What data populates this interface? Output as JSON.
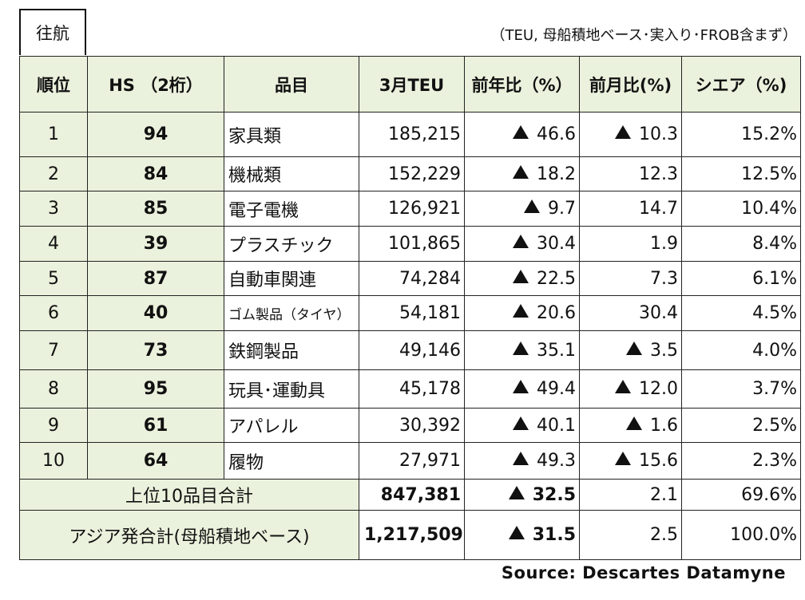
{
  "route": "往航",
  "note": "（TEU, 母船積地ベース･実入り･FROB含まず）",
  "headers": [
    "順位",
    "HS （2桁）",
    "品目",
    "3月TEU",
    "前年比（%）",
    "前月比(%)",
    "シエア（%)"
  ],
  "source": "Source: Descartes Datamyne",
  "chart_data": {
    "type": "table",
    "columns": [
      "順位",
      "HS （2桁）",
      "品目",
      "3月TEU",
      "前年比（%）",
      "前月比(%)",
      "シエア（%)"
    ],
    "rows": [
      {
        "rank": "1",
        "hs": "94",
        "item": "家具類",
        "teu": "185,215",
        "yoy": "46.6",
        "yoy_down": true,
        "mom": "10.3",
        "mom_down": true,
        "share": "15.2%"
      },
      {
        "rank": "2",
        "hs": "84",
        "item": "機械類",
        "teu": "152,229",
        "yoy": "18.2",
        "yoy_down": true,
        "mom": "12.3",
        "mom_down": false,
        "share": "12.5%"
      },
      {
        "rank": "3",
        "hs": "85",
        "item": "電子電機",
        "teu": "126,921",
        "yoy": "9.7",
        "yoy_down": true,
        "mom": "14.7",
        "mom_down": false,
        "share": "10.4%"
      },
      {
        "rank": "4",
        "hs": "39",
        "item": "プラスチック",
        "teu": "101,865",
        "yoy": "30.4",
        "yoy_down": true,
        "mom": "1.9",
        "mom_down": false,
        "share": "8.4%"
      },
      {
        "rank": "5",
        "hs": "87",
        "item": "自動車関連",
        "teu": "74,284",
        "yoy": "22.5",
        "yoy_down": true,
        "mom": "7.3",
        "mom_down": false,
        "share": "6.1%"
      },
      {
        "rank": "6",
        "hs": "40",
        "item": "ゴム製品（タイヤ）",
        "item_small": true,
        "teu": "54,181",
        "yoy": "20.6",
        "yoy_down": true,
        "mom": "30.4",
        "mom_down": false,
        "share": "4.5%"
      },
      {
        "rank": "7",
        "hs": "73",
        "item": "鉄鋼製品",
        "teu": "49,146",
        "yoy": "35.1",
        "yoy_down": true,
        "mom": "3.5",
        "mom_down": true,
        "share": "4.0%"
      },
      {
        "rank": "8",
        "hs": "95",
        "item": "玩具･運動具",
        "teu": "45,178",
        "yoy": "49.4",
        "yoy_down": true,
        "mom": "12.0",
        "mom_down": true,
        "share": "3.7%"
      },
      {
        "rank": "9",
        "hs": "61",
        "item": "アパレル",
        "teu": "30,392",
        "yoy": "40.1",
        "yoy_down": true,
        "mom": "1.6",
        "mom_down": true,
        "share": "2.5%"
      },
      {
        "rank": "10",
        "hs": "64",
        "item": "履物",
        "teu": "27,971",
        "yoy": "49.3",
        "yoy_down": true,
        "mom": "15.6",
        "mom_down": true,
        "share": "2.3%"
      }
    ],
    "totals": [
      {
        "label": "上位10品目合計",
        "teu": "847,381",
        "yoy": "32.5",
        "yoy_down": true,
        "mom": "2.1",
        "mom_down": false,
        "share": "69.6%"
      },
      {
        "label": "アジア発合計(母船積地ベース)",
        "teu": "1,217,509",
        "yoy": "31.5",
        "yoy_down": true,
        "mom": "2.5",
        "mom_down": false,
        "share": "100.0%"
      }
    ]
  }
}
